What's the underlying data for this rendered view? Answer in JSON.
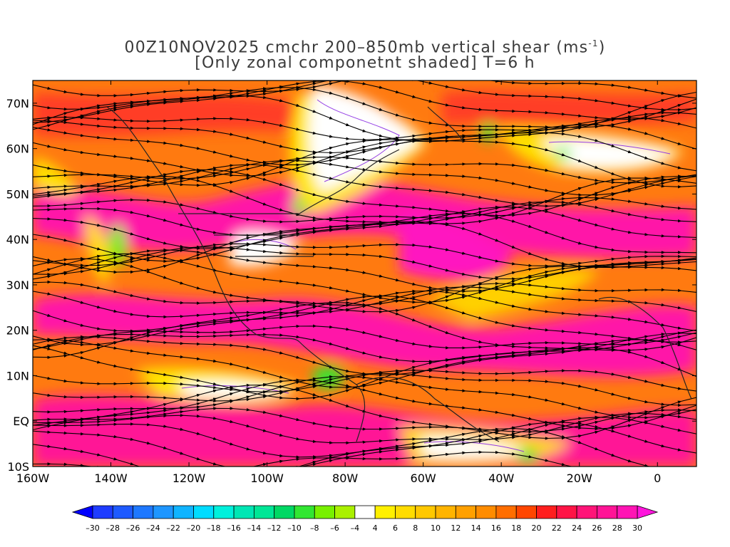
{
  "title": {
    "line1_prefix": "00Z10NOV2025 cmchr 200–850mb vertical shear (ms",
    "unit_superscript": "-1",
    "line1_suffix": ")",
    "line2": "[Only zonal componetnt shaded] T=6 h"
  },
  "map": {
    "lon_range": [
      -160,
      10
    ],
    "lat_range": [
      -10,
      75
    ],
    "lon_ticks": [
      {
        "value": -160,
        "label": "160W"
      },
      {
        "value": -140,
        "label": "140W"
      },
      {
        "value": -120,
        "label": "120W"
      },
      {
        "value": -100,
        "label": "100W"
      },
      {
        "value": -80,
        "label": "80W"
      },
      {
        "value": -60,
        "label": "60W"
      },
      {
        "value": -40,
        "label": "40W"
      },
      {
        "value": -20,
        "label": "20W"
      },
      {
        "value": 0,
        "label": "0"
      }
    ],
    "lat_ticks": [
      {
        "value": 70,
        "label": "70N"
      },
      {
        "value": 60,
        "label": "60N"
      },
      {
        "value": 50,
        "label": "50N"
      },
      {
        "value": 40,
        "label": "40N"
      },
      {
        "value": 30,
        "label": "30N"
      },
      {
        "value": 20,
        "label": "20N"
      },
      {
        "value": 10,
        "label": "10N"
      },
      {
        "value": 0,
        "label": "EQ"
      },
      {
        "value": -10,
        "label": "10S"
      }
    ]
  },
  "colorbar": {
    "labels": [
      "-30",
      "-28",
      "-26",
      "-24",
      "-22",
      "-20",
      "-18",
      "-16",
      "-14",
      "-12",
      "-10",
      "-8",
      "-6",
      "-4",
      "4",
      "6",
      "8",
      "10",
      "12",
      "14",
      "16",
      "18",
      "20",
      "22",
      "24",
      "26",
      "28",
      "30"
    ],
    "colors": [
      "#1e3cff",
      "#1e5aff",
      "#1e78ff",
      "#1e96ff",
      "#10b4ff",
      "#00dcff",
      "#00f0dc",
      "#00e6b4",
      "#00e696",
      "#00d864",
      "#32e632",
      "#78f000",
      "#aaf000",
      "#ffffff",
      "#fff000",
      "#ffdc00",
      "#ffc800",
      "#ffb400",
      "#ffa000",
      "#ff8c00",
      "#ff6e00",
      "#ff4600",
      "#ff1e1e",
      "#ff1446",
      "#ff1478",
      "#ff1496",
      "#ff14b4"
    ],
    "low_color": "#0000ff",
    "high_color": "#ff14dc"
  }
}
